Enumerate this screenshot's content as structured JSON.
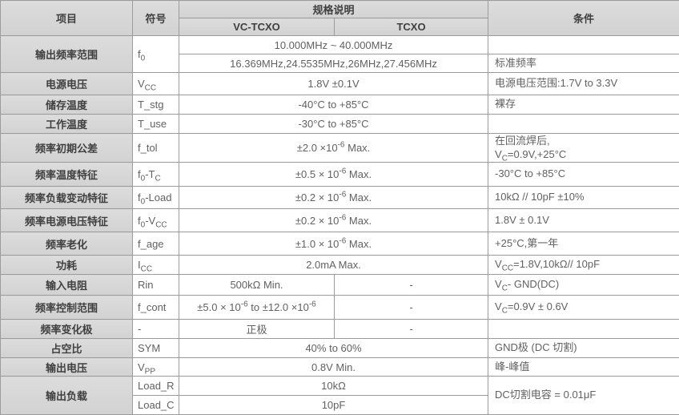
{
  "colors": {
    "header_bg": "#d6d6d6",
    "border": "#9c9c9c",
    "header_text": "#3f3f3f",
    "cell_text": "#616161",
    "cell_bg": "#ffffff"
  },
  "table": {
    "headers": {
      "item": "项目",
      "symbol": "符号",
      "spec": "规格说明",
      "spec_vc_tcxo": "VC-TCXO",
      "spec_tcxo": "TCXO",
      "condition": "条件"
    },
    "rows": {
      "output_freq_range": {
        "item": "输出频率范围",
        "symbol": "f_{0}",
        "sub": [
          {
            "value": "10.000MHz ~ 40.000MHz",
            "condition": ""
          },
          {
            "value": "16.369MHz,24.5535MHz,26MHz,27.456MHz",
            "condition": "标准频率"
          }
        ]
      },
      "supply_voltage": {
        "item": "电源电压",
        "symbol": "V_{CC}",
        "value": "1.8V ±0.1V",
        "condition": "电源电压范围:1.7V to 3.3V"
      },
      "storage_temp": {
        "item": "储存温度",
        "symbol": "T_stg",
        "value": "-40°C to +85°C",
        "condition": "裸存"
      },
      "operating_temp": {
        "item": "工作温度",
        "symbol": "T_use",
        "value": "-30°C to +85°C",
        "condition": ""
      },
      "freq_initial_tolerance": {
        "item": "频率初期公差",
        "symbol": "f_tol",
        "value": "±2.0 ×10^{-6} Max.",
        "condition": "在回流焊后,\nV_{C}=0.9V,+25°C"
      },
      "freq_temp_char": {
        "item": "频率温度特征",
        "symbol": "f_{0}-T_{C}",
        "value": "±0.5 × 10^{-6} Max.",
        "condition": "-30°C to +85°C"
      },
      "freq_load_char": {
        "item": "频率负载变动特征",
        "symbol": "f_{0}-Load",
        "value": "±0.2 × 10^{-6} Max.",
        "condition": "10kΩ // 10pF ±10%"
      },
      "freq_supply_char": {
        "item": "频率电源电压特征",
        "symbol": "f_{0}-V_{CC}",
        "value": "±0.2 × 10^{-6} Max.",
        "condition": "1.8V ± 0.1V"
      },
      "freq_aging": {
        "item": "频率老化",
        "symbol": "f_age",
        "value": "±1.0 × 10^{-6} Max.",
        "condition": "+25°C,第一年"
      },
      "power_consumption": {
        "item": "功耗",
        "symbol": "I_{CC}",
        "value": "2.0mA Max.",
        "condition": "V_{CC}=1.8V,10kΩ// 10pF"
      },
      "input_resistance": {
        "item": "输入电阻",
        "symbol": "Rin",
        "value_vc_tcxo": "500kΩ Min.",
        "value_tcxo": "-",
        "condition": "V_{C}- GND(DC)"
      },
      "freq_control_range": {
        "item": "频率控制范围",
        "symbol": "f_cont",
        "value_vc_tcxo": "±5.0 × 10^{-6} to ±12.0 ×10^{-6}",
        "value_tcxo": "-",
        "condition": "V_{C}=0.9V ± 0.6V"
      },
      "freq_change_polarity": {
        "item": "频率变化极",
        "symbol": "-",
        "value_vc_tcxo": "正极",
        "value_tcxo": "-",
        "condition": ""
      },
      "duty_cycle": {
        "item": "占空比",
        "symbol": "SYM",
        "value": "40% to 60%",
        "condition": "GND极 (DC 切割)"
      },
      "output_voltage": {
        "item": "输出电压",
        "symbol": "V_{PP}",
        "value": "0.8V Min.",
        "condition": "峰-峰值"
      },
      "output_load": {
        "item": "输出负载",
        "condition": "DC切割电容 = 0.01μF",
        "sub": [
          {
            "symbol": "Load_R",
            "value": "10kΩ"
          },
          {
            "symbol": "Load_C",
            "value": "10pF"
          }
        ]
      }
    }
  }
}
